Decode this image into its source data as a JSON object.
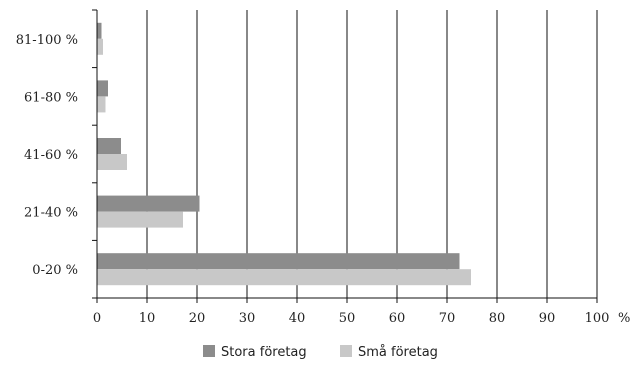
{
  "chart_data": {
    "type": "bar",
    "orientation": "horizontal",
    "title": "",
    "xlabel": "",
    "ylabel": "",
    "x_unit_label": "%",
    "xlim": [
      0,
      100
    ],
    "x_ticks": [
      0,
      10,
      20,
      30,
      40,
      50,
      60,
      70,
      80,
      90,
      100
    ],
    "grid": "vertical",
    "legend_position": "bottom",
    "categories": [
      "0-20 %",
      "21-40 %",
      "41-60 %",
      "61-80 %",
      "81-100 %"
    ],
    "series": [
      {
        "name": "Stora företag",
        "color": "#8c8c8c",
        "values": [
          72.5,
          20.5,
          4.8,
          2.2,
          0.9
        ]
      },
      {
        "name": "Små företag",
        "color": "#c8c8c8",
        "values": [
          74.8,
          17.2,
          6.0,
          1.7,
          1.2
        ]
      }
    ]
  }
}
